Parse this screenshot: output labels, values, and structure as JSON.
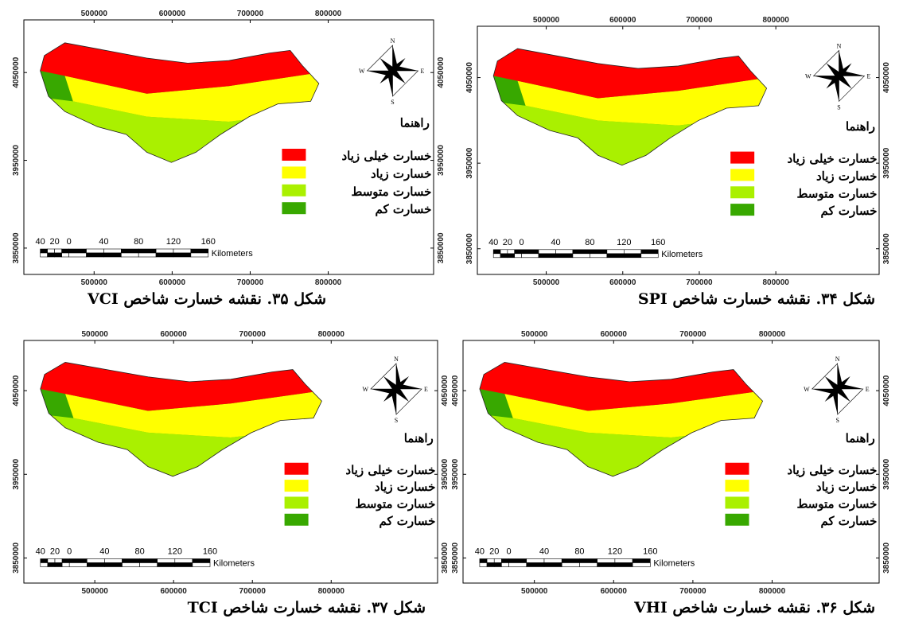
{
  "map_axes": {
    "xlim": [
      410000,
      935000
    ],
    "ylim": [
      3820000,
      4110000
    ],
    "xticks": [
      500000,
      600000,
      700000,
      800000
    ],
    "yticks": [
      3850000,
      3950000,
      4050000
    ]
  },
  "compass": {
    "n": "N",
    "s": "S",
    "e": "E",
    "w": "W"
  },
  "legend": {
    "title": "راهنما",
    "items": [
      {
        "label": "خسارت خیلی زیاد",
        "color": "#ff0000"
      },
      {
        "label": "خسارت زیاد",
        "color": "#ffff00"
      },
      {
        "label": "خسارت متوسط",
        "color": "#aaf000"
      },
      {
        "label": "خسارت کم",
        "color": "#38a800"
      }
    ]
  },
  "scale_bar": {
    "labels": [
      "40",
      "20",
      "0",
      "40",
      "80",
      "120",
      "160"
    ],
    "unit": "Kilometers"
  },
  "panels": [
    {
      "caption": "شکل ۳۴. نقشه خسارت شاخص SPI"
    },
    {
      "caption": "شکل ۳۵. نقشه خسارت شاخص VCI"
    },
    {
      "caption": "شکل ۳۶. نقشه خسارت شاخص VHI"
    },
    {
      "caption": "شکل ۳۷. نقشه خسارت شاخص TCI"
    }
  ]
}
